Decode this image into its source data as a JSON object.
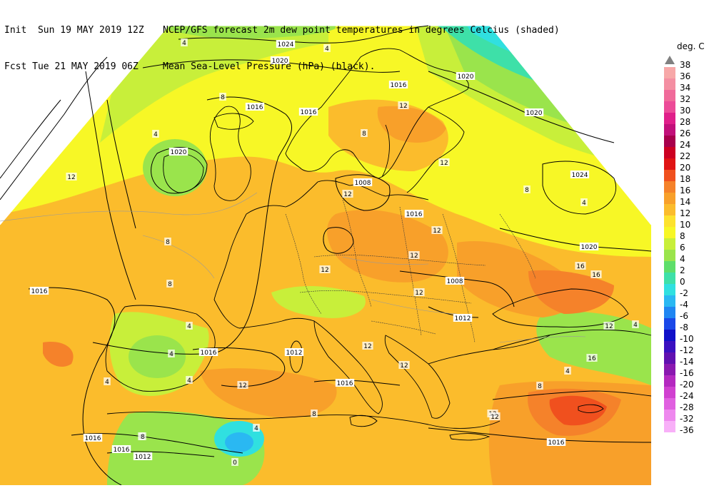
{
  "header": {
    "line1_left": "Init  Sun 19 MAY 2019 12Z",
    "line1_right": "NCEP/GFS forecast 2m dew point temperatures in degrees Celcius (shaded)",
    "line2_left": "Fcst Tue 21 MAY 2019 06Z",
    "line2_right": "Mean Sea-Level Pressure (hPa) (black)."
  },
  "legend": {
    "unit": "deg. C",
    "entries": [
      {
        "label": "38",
        "color": "#808080"
      },
      {
        "label": "36",
        "color": "#f7a8a8"
      },
      {
        "label": "34",
        "color": "#f48fa2"
      },
      {
        "label": "32",
        "color": "#f06a9a"
      },
      {
        "label": "30",
        "color": "#ec4b98"
      },
      {
        "label": "28",
        "color": "#e01f8a"
      },
      {
        "label": "26",
        "color": "#c2107a"
      },
      {
        "label": "24",
        "color": "#a8004c"
      },
      {
        "label": "22",
        "color": "#cc0022"
      },
      {
        "label": "20",
        "color": "#e01414"
      },
      {
        "label": "18",
        "color": "#f0501e"
      },
      {
        "label": "16",
        "color": "#f5822a"
      },
      {
        "label": "14",
        "color": "#f8a02a"
      },
      {
        "label": "12",
        "color": "#fbbc2c"
      },
      {
        "label": "10",
        "color": "#fde22e"
      },
      {
        "label": "8",
        "color": "#f7f726"
      },
      {
        "label": "6",
        "color": "#c8ef3a"
      },
      {
        "label": "4",
        "color": "#9ae44c"
      },
      {
        "label": "2",
        "color": "#5ede6a"
      },
      {
        "label": "0",
        "color": "#3ee0a8"
      },
      {
        "label": "-2",
        "color": "#30e0e0"
      },
      {
        "label": "-4",
        "color": "#2ab8f2"
      },
      {
        "label": "-6",
        "color": "#2086f2"
      },
      {
        "label": "-8",
        "color": "#1a48e8"
      },
      {
        "label": "-10",
        "color": "#1010c8"
      },
      {
        "label": "-12",
        "color": "#3a10c0"
      },
      {
        "label": "-14",
        "color": "#6010b0"
      },
      {
        "label": "-16",
        "color": "#8a18b0"
      },
      {
        "label": "-20",
        "color": "#b428c0"
      },
      {
        "label": "-24",
        "color": "#d040d0"
      },
      {
        "label": "-28",
        "color": "#e060e0"
      },
      {
        "label": "-32",
        "color": "#ee88ee"
      },
      {
        "label": "-36",
        "color": "#f8b0f8"
      }
    ]
  },
  "isobar_labels": [
    "1024",
    "1020",
    "1016",
    "1020",
    "1016",
    "1016",
    "1020",
    "1008",
    "1020",
    "1024",
    "1020",
    "1016",
    "1016",
    "1008",
    "1012",
    "1016",
    "1012",
    "1016",
    "1016",
    "1012",
    "1016",
    "1016"
  ],
  "dewpoint_labels": [
    "4",
    "4",
    "8",
    "12",
    "12",
    "12",
    "8",
    "8",
    "4",
    "8",
    "12",
    "12",
    "12",
    "12",
    "12",
    "12",
    "12",
    "8",
    "4",
    "4",
    "4",
    "8",
    "4",
    "12",
    "12",
    "4",
    "16",
    "4",
    "12",
    "0",
    "4",
    "8",
    "4",
    "8",
    "12",
    "16",
    "16",
    "8"
  ]
}
